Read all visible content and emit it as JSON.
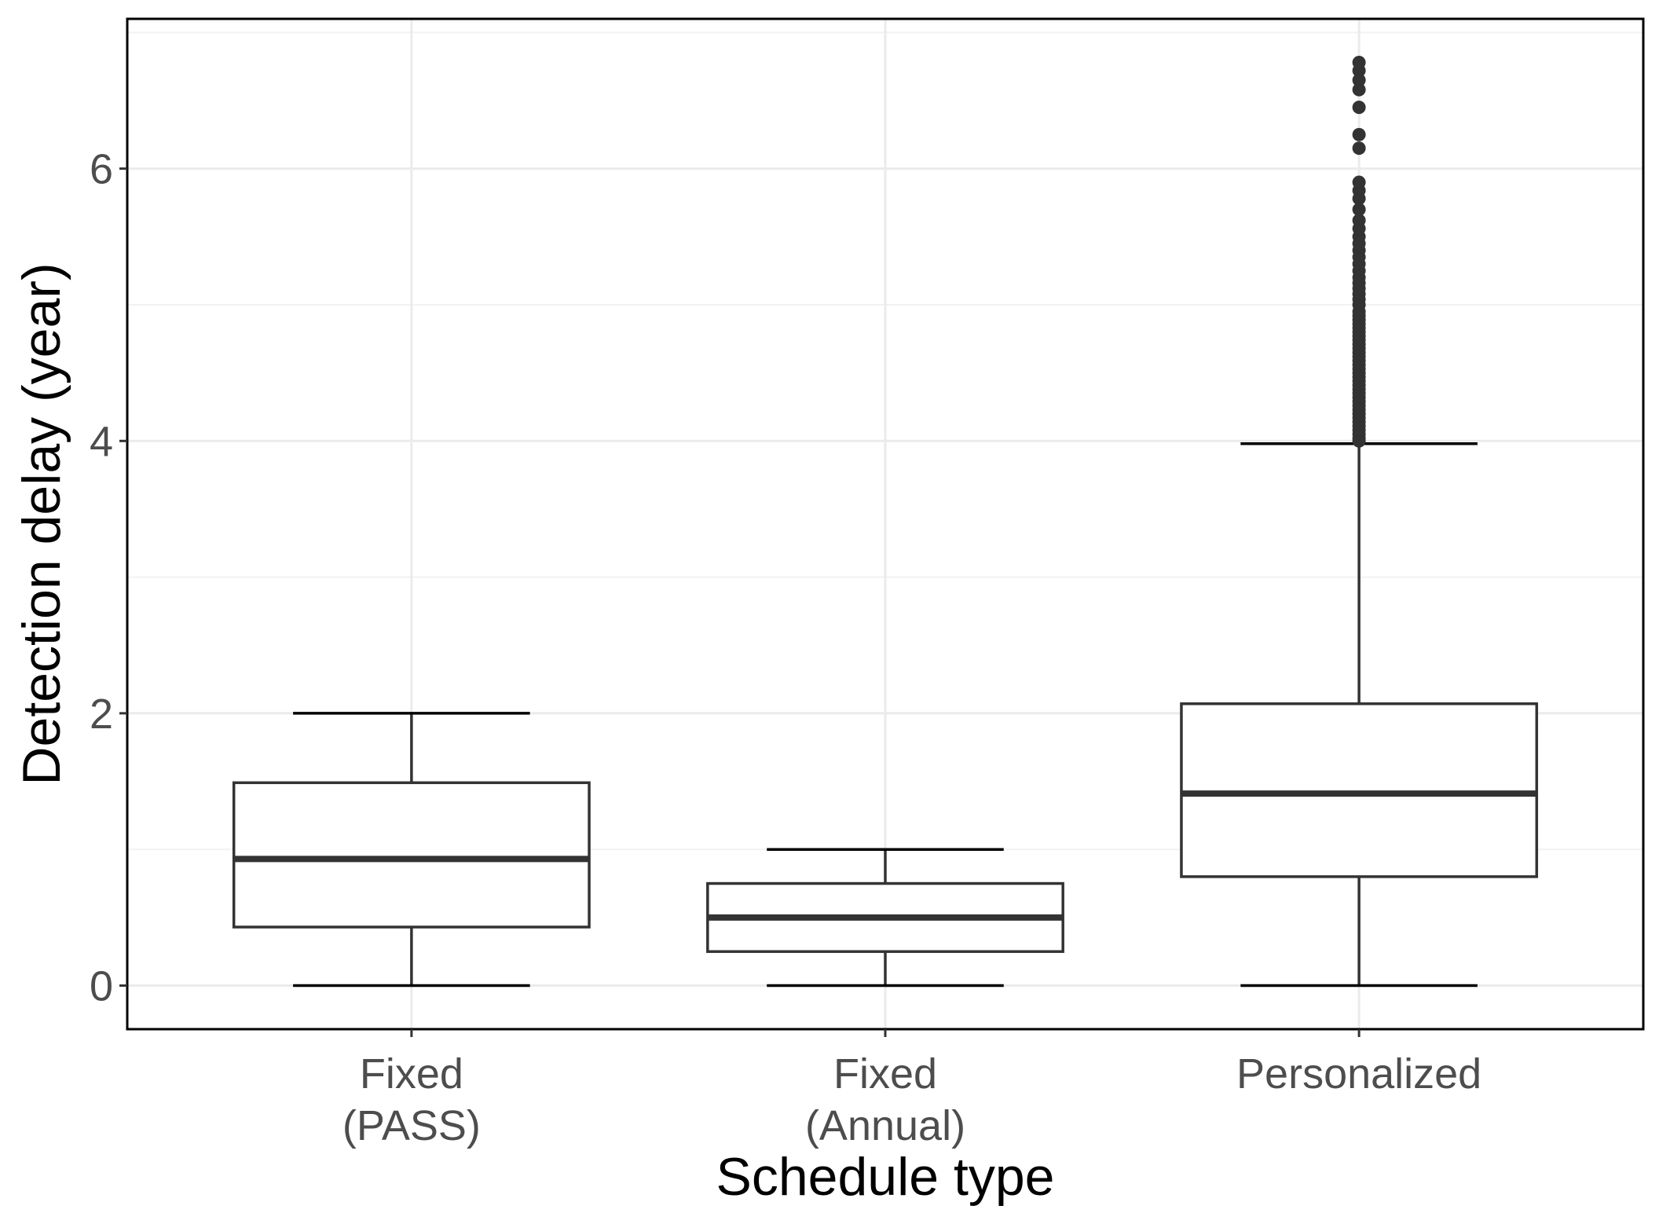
{
  "chart_data": {
    "type": "box",
    "title": "",
    "xlabel": "Schedule type",
    "ylabel": "Detection delay (year)",
    "ylim": [
      -0.32,
      7.1
    ],
    "y_ticks": [
      0,
      2,
      4,
      6
    ],
    "y_tick_labels": [
      "0",
      "2",
      "4",
      "6"
    ],
    "grid": true,
    "categories": [
      {
        "label_lines": [
          "Fixed",
          "(PASS)"
        ]
      },
      {
        "label_lines": [
          "Fixed",
          "(Annual)"
        ]
      },
      {
        "label_lines": [
          "Personalized"
        ]
      }
    ],
    "boxes": [
      {
        "whisker_low": 0.0,
        "q1": 0.43,
        "median": 0.93,
        "q3": 1.49,
        "whisker_high": 2.0,
        "outliers": []
      },
      {
        "whisker_low": 0.0,
        "q1": 0.25,
        "median": 0.5,
        "q3": 0.75,
        "whisker_high": 1.0,
        "outliers": []
      },
      {
        "whisker_low": 0.0,
        "q1": 0.8,
        "median": 1.41,
        "q3": 2.07,
        "whisker_high": 3.98,
        "outliers": [
          4.0,
          4.02,
          4.05,
          4.08,
          4.11,
          4.14,
          4.17,
          4.2,
          4.23,
          4.26,
          4.29,
          4.32,
          4.35,
          4.38,
          4.41,
          4.44,
          4.47,
          4.5,
          4.53,
          4.56,
          4.59,
          4.62,
          4.65,
          4.68,
          4.71,
          4.74,
          4.77,
          4.8,
          4.83,
          4.86,
          4.89,
          4.92,
          4.95,
          5.0,
          5.04,
          5.08,
          5.12,
          5.16,
          5.2,
          5.25,
          5.3,
          5.35,
          5.4,
          5.45,
          5.5,
          5.56,
          5.62,
          5.7,
          5.78,
          5.84,
          5.9,
          6.15,
          6.25,
          6.45,
          6.58,
          6.65,
          6.72,
          6.78
        ]
      }
    ],
    "colors": {
      "box_stroke": "#333333",
      "box_fill": "#ffffff",
      "grid_major": "#ebebeb",
      "grid_minor": "#f2f2f2",
      "panel_border": "#000000",
      "outlier": "#333333"
    }
  }
}
